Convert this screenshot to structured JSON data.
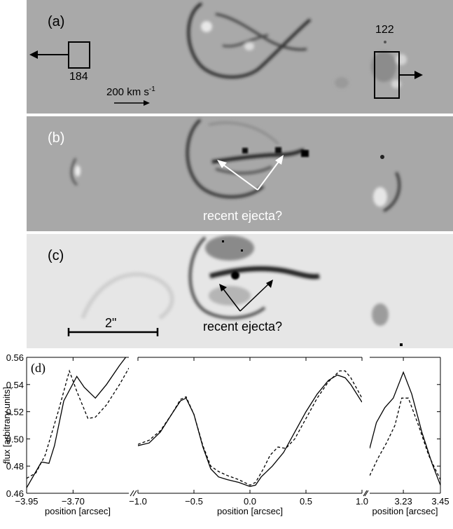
{
  "panels": {
    "a": {
      "label": "(a)",
      "box_left_value": "184",
      "box_right_value": "122",
      "velocity_label": "200 km s",
      "velocity_sup": "-1"
    },
    "b": {
      "label": "(b)",
      "annotation": "recent ejecta?"
    },
    "c": {
      "label": "(c)",
      "annotation": "recent ejecta?",
      "scale_label": "2\""
    }
  },
  "chart_data": {
    "type": "line",
    "panel_label": "(d)",
    "ylabel": "flux [arbitrary units]",
    "xlabel": "position [arcsec]",
    "ylim": [
      0.46,
      0.56
    ],
    "yticks": [
      "0.46",
      "0.48",
      "0.50",
      "0.52",
      "0.54",
      "0.56"
    ],
    "segments": [
      {
        "xlim": [
          -3.95,
          -3.4
        ],
        "xticks": [
          {
            "v": -3.95,
            "label": "−3.95"
          },
          {
            "v": -3.7,
            "label": "−3.70"
          }
        ],
        "series": [
          {
            "style": "solid",
            "x": [
              -3.95,
              -3.9,
              -3.87,
              -3.83,
              -3.8,
              -3.75,
              -3.68,
              -3.64,
              -3.58,
              -3.52,
              -3.45,
              -3.4
            ],
            "y": [
              0.464,
              0.476,
              0.483,
              0.482,
              0.495,
              0.528,
              0.546,
              0.538,
              0.53,
              0.54,
              0.554,
              0.563
            ]
          },
          {
            "style": "dashed",
            "x": [
              -3.95,
              -3.9,
              -3.85,
              -3.78,
              -3.72,
              -3.68,
              -3.62,
              -3.58,
              -3.52,
              -3.45,
              -3.4
            ],
            "y": [
              0.471,
              0.475,
              0.488,
              0.52,
              0.55,
              0.535,
              0.515,
              0.516,
              0.525,
              0.54,
              0.552
            ]
          }
        ]
      },
      {
        "xlim": [
          -1.0,
          1.0
        ],
        "xticks": [
          {
            "v": -1.0,
            "label": "−1.0"
          },
          {
            "v": -0.5,
            "label": "−0.5"
          },
          {
            "v": 0.0,
            "label": "0.0"
          },
          {
            "v": 0.5,
            "label": "0.5"
          },
          {
            "v": 1.0,
            "label": "1.0"
          }
        ],
        "series": [
          {
            "style": "solid",
            "x": [
              -1.0,
              -0.9,
              -0.8,
              -0.7,
              -0.62,
              -0.57,
              -0.5,
              -0.42,
              -0.35,
              -0.28,
              -0.2,
              -0.1,
              0.0,
              0.05,
              0.1,
              0.2,
              0.3,
              0.4,
              0.5,
              0.6,
              0.7,
              0.78,
              0.85,
              0.9,
              1.0
            ],
            "y": [
              0.495,
              0.497,
              0.505,
              0.518,
              0.528,
              0.53,
              0.518,
              0.494,
              0.478,
              0.472,
              0.47,
              0.468,
              0.465,
              0.466,
              0.472,
              0.48,
              0.49,
              0.505,
              0.52,
              0.533,
              0.543,
              0.547,
              0.545,
              0.54,
              0.527
            ]
          },
          {
            "style": "dashed",
            "x": [
              -1.0,
              -0.9,
              -0.8,
              -0.7,
              -0.62,
              -0.57,
              -0.5,
              -0.42,
              -0.35,
              -0.28,
              -0.2,
              -0.1,
              0.0,
              0.05,
              0.12,
              0.18,
              0.25,
              0.32,
              0.4,
              0.5,
              0.6,
              0.7,
              0.8,
              0.85,
              0.9,
              1.0
            ],
            "y": [
              0.496,
              0.499,
              0.506,
              0.518,
              0.529,
              0.531,
              0.518,
              0.495,
              0.48,
              0.476,
              0.473,
              0.47,
              0.466,
              0.468,
              0.478,
              0.488,
              0.494,
              0.493,
              0.5,
              0.515,
              0.53,
              0.542,
              0.55,
              0.55,
              0.545,
              0.53
            ]
          }
        ]
      },
      {
        "xlim": [
          3.03,
          3.45
        ],
        "xticks": [
          {
            "v": 3.23,
            "label": "3.23"
          },
          {
            "v": 3.45,
            "label": "3.45"
          }
        ],
        "series": [
          {
            "style": "solid",
            "x": [
              3.03,
              3.07,
              3.12,
              3.17,
              3.23,
              3.28,
              3.34,
              3.4,
              3.45
            ],
            "y": [
              0.493,
              0.512,
              0.523,
              0.53,
              0.549,
              0.533,
              0.505,
              0.482,
              0.466
            ]
          },
          {
            "style": "dashed",
            "x": [
              3.03,
              3.08,
              3.13,
              3.18,
              3.22,
              3.26,
              3.32,
              3.38,
              3.45
            ],
            "y": [
              0.473,
              0.486,
              0.497,
              0.51,
              0.53,
              0.53,
              0.51,
              0.488,
              0.47
            ]
          }
        ]
      }
    ]
  }
}
